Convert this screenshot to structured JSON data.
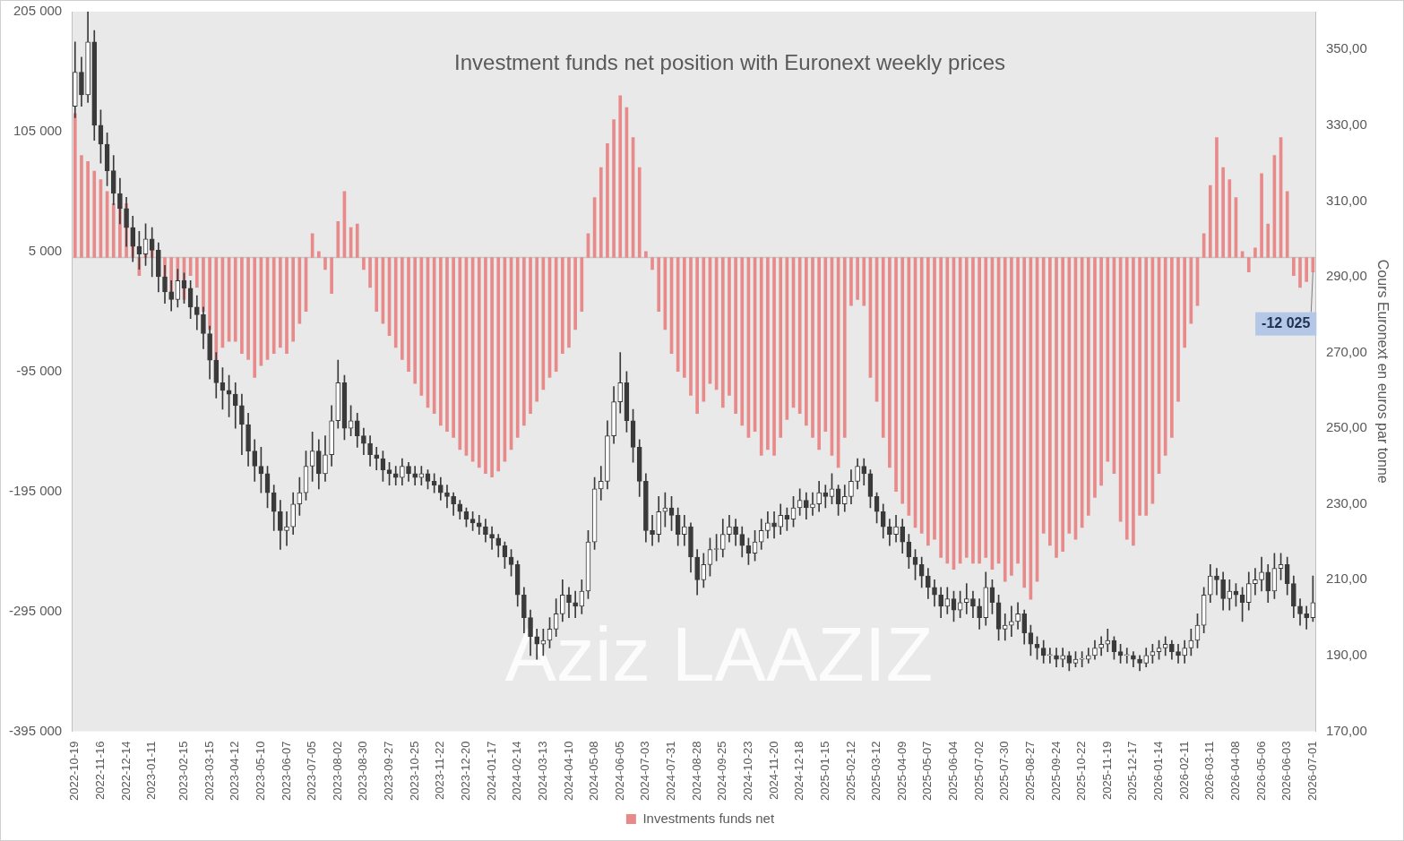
{
  "chart_data": {
    "type": "bar",
    "title": "Investment funds net position with Euronext weekly prices",
    "y2_label": "Cours Euronext en euros par tonne",
    "watermark": "Aziz LAAZIZ",
    "annotation": {
      "text": "-12 025",
      "value": -12025
    },
    "legend": "bottom",
    "grid": false,
    "categories": [
      "2022-10-19",
      null,
      null,
      null,
      "2022-11-16",
      null,
      null,
      null,
      "2022-12-14",
      null,
      null,
      null,
      "2023-01-11",
      null,
      null,
      null,
      null,
      "2023-02-15",
      null,
      null,
      null,
      "2023-03-15",
      null,
      null,
      null,
      "2023-04-12",
      null,
      null,
      null,
      "2023-05-10",
      null,
      null,
      null,
      "2023-06-07",
      null,
      null,
      null,
      "2023-07-05",
      null,
      null,
      null,
      "2023-08-02",
      null,
      null,
      null,
      "2023-08-30",
      null,
      null,
      null,
      "2023-09-27",
      null,
      null,
      null,
      "2023-10-25",
      null,
      null,
      null,
      "2023-11-22",
      null,
      null,
      null,
      "2023-12-20",
      null,
      null,
      null,
      "2024-01-17",
      null,
      null,
      null,
      "2024-02-14",
      null,
      null,
      null,
      "2024-03-13",
      null,
      null,
      null,
      "2024-04-10",
      null,
      null,
      null,
      "2024-05-08",
      null,
      null,
      null,
      "2024-06-05",
      null,
      null,
      null,
      "2024-07-03",
      null,
      null,
      null,
      "2024-07-31",
      null,
      null,
      null,
      "2024-08-28",
      null,
      null,
      null,
      "2024-09-25",
      null,
      null,
      null,
      "2024-10-23",
      null,
      null,
      null,
      "2024-11-20",
      null,
      null,
      null,
      "2024-12-18",
      null,
      null,
      null,
      "2025-01-15",
      null,
      null,
      null,
      "2025-02-12",
      null,
      null,
      null,
      "2025-03-12",
      null,
      null,
      null,
      "2025-04-09",
      null,
      null,
      null,
      "2025-05-07",
      null,
      null,
      null,
      "2025-06-04",
      null,
      null,
      null,
      "2025-07-02",
      null,
      null,
      null,
      "2025-07-30",
      null,
      null,
      null,
      "2025-08-27",
      null,
      null,
      null,
      "2025-09-24",
      null,
      null,
      null,
      "2025-10-22",
      null,
      null,
      null,
      "2025-11-19",
      null,
      null,
      null,
      "2025-12-17",
      null,
      null,
      null,
      "2026-01-14",
      null,
      null,
      null,
      "2026-02-11",
      null,
      null,
      null,
      "2026-03-11",
      null,
      null,
      null,
      "2026-04-08",
      null,
      null,
      null,
      "2026-05-06",
      null,
      null,
      null,
      "2026-06-03",
      null,
      null,
      null,
      "2026-07-01"
    ],
    "series": [
      {
        "name": "Investments funds net",
        "type": "bar",
        "color": "#e8898a",
        "values": [
          120000,
          85000,
          80000,
          72000,
          65000,
          55000,
          45000,
          52000,
          45000,
          25000,
          -15000,
          8000,
          15000,
          5000,
          -20000,
          -30000,
          -25000,
          -35000,
          -15000,
          -25000,
          -45000,
          -60000,
          -85000,
          -75000,
          -70000,
          -70000,
          -80000,
          -85000,
          -100000,
          -90000,
          -85000,
          -80000,
          -75000,
          -80000,
          -70000,
          -55000,
          -45000,
          20000,
          5000,
          -10000,
          -30000,
          30000,
          55000,
          25000,
          28000,
          -10000,
          -25000,
          -45000,
          -55000,
          -65000,
          -75000,
          -85000,
          -95000,
          -105000,
          -115000,
          -125000,
          -130000,
          -140000,
          -145000,
          -150000,
          -160000,
          -165000,
          -170000,
          -175000,
          -180000,
          -183000,
          -178000,
          -170000,
          -160000,
          -150000,
          -140000,
          -130000,
          -120000,
          -110000,
          -100000,
          -95000,
          -80000,
          -75000,
          -60000,
          -45000,
          20000,
          50000,
          75000,
          95000,
          115000,
          135000,
          125000,
          100000,
          75000,
          5000,
          -10000,
          -45000,
          -60000,
          -80000,
          -95000,
          -100000,
          -115000,
          -130000,
          -120000,
          -105000,
          -110000,
          -125000,
          -115000,
          -130000,
          -140000,
          -150000,
          -145000,
          -165000,
          -160000,
          -165000,
          -150000,
          -135000,
          -125000,
          -130000,
          -140000,
          -150000,
          -160000,
          -145000,
          -165000,
          -175000,
          -150000,
          -40000,
          -35000,
          -40000,
          -100000,
          -120000,
          -150000,
          -175000,
          -195000,
          -205000,
          -215000,
          -225000,
          -230000,
          -240000,
          -235000,
          -250000,
          -255000,
          -260000,
          -255000,
          -250000,
          -255000,
          -255000,
          -250000,
          -260000,
          -255000,
          -270000,
          -265000,
          -255000,
          -275000,
          -285000,
          -270000,
          -230000,
          -240000,
          -250000,
          -245000,
          -230000,
          -235000,
          -225000,
          -215000,
          -200000,
          -190000,
          -170000,
          -180000,
          -220000,
          -235000,
          -240000,
          -215000,
          -215000,
          -205000,
          -180000,
          -165000,
          -150000,
          -120000,
          -75000,
          -55000,
          -40000,
          20000,
          60000,
          100000,
          75000,
          65000,
          50000,
          5000,
          -12000,
          8000,
          70000,
          28000,
          85000,
          100000,
          55000,
          -15000,
          -25000,
          -20000,
          -12025
        ]
      },
      {
        "type": "candlestick",
        "axis": "y2",
        "color": "#3a3a3a",
        "open": [
          335,
          344,
          338,
          352,
          330,
          325,
          318,
          312,
          308,
          303,
          298,
          296,
          300,
          297,
          290,
          286,
          284,
          289,
          287,
          282,
          280,
          275,
          268,
          262,
          260,
          259,
          256,
          251,
          244,
          240,
          238,
          233,
          228,
          223,
          224,
          230,
          233,
          240,
          244,
          238,
          243,
          252,
          262,
          250,
          252,
          248,
          246,
          243,
          242,
          239,
          238,
          237,
          240,
          238,
          237,
          238,
          236,
          235,
          233,
          232,
          230,
          228,
          226,
          225,
          224,
          222,
          221,
          219,
          216,
          214,
          206,
          200,
          195,
          193,
          194,
          197,
          201,
          206,
          204,
          203,
          207,
          220,
          234,
          236,
          248,
          257,
          262,
          252,
          245,
          236,
          223,
          222,
          228,
          229,
          227,
          222,
          224,
          216,
          210,
          214,
          218,
          218,
          222,
          224,
          222,
          219,
          217,
          220,
          223,
          225,
          224,
          227,
          226,
          229,
          231,
          229,
          230,
          233,
          232,
          234,
          230,
          232,
          236,
          240,
          238,
          232,
          228,
          224,
          222,
          224,
          220,
          216,
          214,
          211,
          208,
          206,
          203,
          205,
          202,
          204,
          205,
          203,
          200,
          208,
          204,
          197,
          198,
          199,
          201,
          196,
          193,
          192,
          190,
          190,
          189,
          190,
          188,
          189,
          189,
          190,
          192,
          193,
          194,
          191,
          190,
          190,
          189,
          188,
          190,
          191,
          192,
          193,
          191,
          190,
          192,
          194,
          198,
          206,
          211,
          210,
          205,
          207,
          206,
          204,
          209,
          210,
          212,
          207,
          213,
          214,
          209,
          203,
          201,
          200
        ],
        "high": [
          352,
          348,
          360,
          355,
          334,
          328,
          322,
          316,
          311,
          306,
          302,
          304,
          303,
          299,
          293,
          289,
          292,
          291,
          289,
          285,
          282,
          277,
          270,
          266,
          264,
          262,
          259,
          254,
          247,
          245,
          240,
          235,
          231,
          228,
          233,
          237,
          244,
          249,
          247,
          248,
          256,
          268,
          264,
          256,
          254,
          250,
          248,
          245,
          244,
          241,
          240,
          242,
          241,
          240,
          240,
          239,
          238,
          237,
          235,
          233,
          231,
          229,
          228,
          227,
          226,
          224,
          222,
          220,
          218,
          215,
          208,
          202,
          197,
          197,
          200,
          205,
          210,
          208,
          207,
          210,
          223,
          237,
          240,
          252,
          261,
          270,
          265,
          255,
          247,
          238,
          227,
          232,
          233,
          232,
          229,
          227,
          225,
          218,
          217,
          221,
          222,
          226,
          227,
          226,
          224,
          221,
          223,
          226,
          228,
          228,
          230,
          229,
          232,
          234,
          233,
          233,
          236,
          235,
          238,
          235,
          235,
          239,
          242,
          242,
          239,
          233,
          230,
          226,
          227,
          226,
          222,
          218,
          216,
          213,
          210,
          208,
          208,
          207,
          207,
          209,
          207,
          205,
          212,
          210,
          206,
          201,
          203,
          204,
          202,
          198,
          195,
          194,
          192,
          192,
          192,
          191,
          191,
          191,
          192,
          194,
          195,
          197,
          195,
          193,
          192,
          191,
          190,
          192,
          193,
          194,
          195,
          194,
          193,
          194,
          197,
          201,
          208,
          214,
          213,
          212,
          210,
          209,
          208,
          212,
          213,
          216,
          214,
          217,
          217,
          216,
          211,
          205,
          203,
          211
        ],
        "low": [
          332,
          335,
          336,
          326,
          320,
          314,
          309,
          304,
          298,
          294,
          292,
          293,
          290,
          286,
          283,
          281,
          282,
          283,
          279,
          276,
          271,
          263,
          258,
          255,
          253,
          250,
          243,
          240,
          236,
          233,
          229,
          223,
          218,
          219,
          222,
          227,
          231,
          236,
          234,
          236,
          240,
          250,
          247,
          248,
          245,
          243,
          240,
          239,
          236,
          235,
          235,
          235,
          236,
          235,
          235,
          234,
          233,
          231,
          229,
          227,
          226,
          224,
          223,
          222,
          220,
          218,
          216,
          213,
          211,
          203,
          196,
          190,
          189,
          190,
          192,
          195,
          199,
          200,
          200,
          201,
          205,
          218,
          231,
          234,
          246,
          254,
          249,
          241,
          232,
          220,
          219,
          220,
          224,
          223,
          219,
          219,
          212,
          206,
          208,
          211,
          215,
          216,
          220,
          219,
          216,
          214,
          215,
          218,
          221,
          221,
          222,
          223,
          224,
          227,
          226,
          227,
          228,
          229,
          230,
          227,
          228,
          230,
          234,
          235,
          229,
          225,
          221,
          219,
          220,
          217,
          213,
          210,
          208,
          205,
          203,
          200,
          201,
          199,
          200,
          201,
          200,
          197,
          198,
          201,
          194,
          194,
          195,
          197,
          193,
          190,
          189,
          188,
          188,
          187,
          187,
          186,
          187,
          187,
          188,
          189,
          190,
          191,
          189,
          188,
          188,
          187,
          186,
          187,
          188,
          189,
          190,
          189,
          188,
          188,
          190,
          192,
          196,
          204,
          206,
          202,
          202,
          203,
          199,
          202,
          206,
          207,
          204,
          205,
          210,
          206,
          200,
          198,
          197,
          199
        ],
        "close": [
          344,
          338,
          352,
          330,
          325,
          318,
          312,
          308,
          303,
          298,
          296,
          300,
          297,
          290,
          286,
          284,
          289,
          287,
          282,
          280,
          275,
          268,
          262,
          260,
          259,
          256,
          251,
          244,
          240,
          238,
          233,
          228,
          223,
          224,
          230,
          233,
          240,
          244,
          238,
          243,
          252,
          262,
          250,
          252,
          248,
          246,
          243,
          242,
          239,
          238,
          237,
          240,
          238,
          237,
          238,
          236,
          235,
          233,
          232,
          230,
          228,
          226,
          225,
          224,
          222,
          221,
          219,
          216,
          214,
          206,
          200,
          195,
          193,
          194,
          197,
          201,
          206,
          204,
          203,
          207,
          220,
          234,
          236,
          248,
          257,
          262,
          252,
          245,
          236,
          223,
          222,
          228,
          229,
          227,
          222,
          224,
          216,
          210,
          214,
          218,
          218,
          222,
          224,
          222,
          219,
          217,
          220,
          223,
          225,
          224,
          227,
          226,
          229,
          231,
          229,
          230,
          233,
          232,
          234,
          230,
          232,
          236,
          240,
          238,
          232,
          228,
          224,
          222,
          224,
          220,
          216,
          214,
          211,
          208,
          206,
          203,
          205,
          202,
          204,
          205,
          203,
          200,
          208,
          204,
          197,
          198,
          199,
          201,
          196,
          193,
          192,
          190,
          190,
          189,
          190,
          188,
          189,
          189,
          190,
          192,
          193,
          194,
          191,
          190,
          190,
          189,
          188,
          190,
          191,
          192,
          193,
          191,
          190,
          192,
          194,
          198,
          206,
          211,
          210,
          205,
          207,
          206,
          204,
          209,
          210,
          212,
          207,
          213,
          214,
          209,
          203,
          201,
          200,
          204
        ]
      }
    ],
    "ylim": [
      -395000,
      205000
    ],
    "yticks": [
      {
        "value": -395000,
        "label": "-395 000"
      },
      {
        "value": -295000,
        "label": "-295 000"
      },
      {
        "value": -195000,
        "label": "-195 000"
      },
      {
        "value": -95000,
        "label": "-95 000"
      },
      {
        "value": 5000,
        "label": "5 000"
      },
      {
        "value": 105000,
        "label": "105 000"
      },
      {
        "value": 205000,
        "label": "205 000"
      }
    ],
    "y2lim": [
      170,
      360
    ],
    "y2ticks": [
      {
        "value": 170,
        "label": "170,00"
      },
      {
        "value": 190,
        "label": "190,00"
      },
      {
        "value": 210,
        "label": "210,00"
      },
      {
        "value": 230,
        "label": "230,00"
      },
      {
        "value": 250,
        "label": "250,00"
      },
      {
        "value": 270,
        "label": "270,00"
      },
      {
        "value": 290,
        "label": "290,00"
      },
      {
        "value": 310,
        "label": "310,00"
      },
      {
        "value": 330,
        "label": "330,00"
      },
      {
        "value": 350,
        "label": "350,00"
      }
    ]
  }
}
